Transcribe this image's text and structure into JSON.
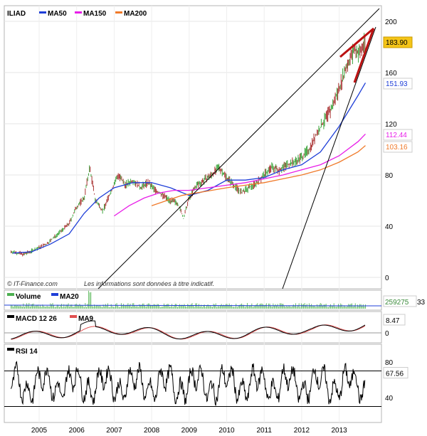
{
  "chart_data": [
    {
      "type": "line",
      "panel": "price",
      "legend": [
        {
          "name": "ILIAD",
          "color": "#000000"
        },
        {
          "name": "MA50",
          "color": "#1f3fd8"
        },
        {
          "name": "MA150",
          "color": "#e81ee8"
        },
        {
          "name": "MA200",
          "color": "#f07a2a"
        }
      ],
      "ylim": [
        0,
        210
      ],
      "yticks": [
        "0",
        "40",
        "80",
        "120",
        "160",
        "200"
      ],
      "xticks": [
        "2005",
        "2006",
        "2007",
        "2008",
        "2009",
        "2010",
        "2011",
        "2012",
        "2013"
      ],
      "last_values": {
        "price": {
          "label": "183.90",
          "color": "#f5c518"
        },
        "ma50": {
          "label": "151.93",
          "color": "#1f3fd8"
        },
        "ma150": {
          "label": "112.44",
          "color": "#e81ee8"
        },
        "ma200": {
          "label": "103.16",
          "color": "#f07a2a"
        }
      },
      "series": [
        {
          "name": "ILIAD",
          "x": [
            2004.3,
            2004.6,
            2004.9,
            2005.2,
            2005.5,
            2005.8,
            2006.0,
            2006.2,
            2006.35,
            2006.5,
            2006.7,
            2006.9,
            2007.1,
            2007.3,
            2007.5,
            2007.7,
            2007.9,
            2008.1,
            2008.3,
            2008.5,
            2008.7,
            2008.85,
            2009.0,
            2009.2,
            2009.4,
            2009.6,
            2009.8,
            2010.0,
            2010.2,
            2010.4,
            2010.6,
            2010.8,
            2011.0,
            2011.2,
            2011.4,
            2011.6,
            2011.8,
            2012.0,
            2012.2,
            2012.4,
            2012.6,
            2012.8,
            2013.0,
            2013.2,
            2013.4,
            2013.55,
            2013.7
          ],
          "values": [
            20,
            18,
            22,
            26,
            34,
            42,
            55,
            62,
            86,
            60,
            52,
            66,
            80,
            72,
            76,
            70,
            74,
            68,
            64,
            60,
            58,
            46,
            62,
            72,
            76,
            80,
            86,
            78,
            72,
            66,
            70,
            74,
            80,
            86,
            84,
            88,
            90,
            94,
            100,
            112,
            122,
            132,
            148,
            165,
            178,
            175,
            184
          ]
        },
        {
          "name": "MA50",
          "x": [
            2004.3,
            2004.8,
            2005.3,
            2005.8,
            2006.2,
            2006.6,
            2007.0,
            2007.5,
            2008.0,
            2008.5,
            2009.0,
            2009.5,
            2010.0,
            2010.5,
            2011.0,
            2011.5,
            2012.0,
            2012.5,
            2013.0,
            2013.5,
            2013.7
          ],
          "values": [
            19,
            20,
            26,
            34,
            50,
            62,
            70,
            74,
            74,
            70,
            64,
            68,
            76,
            76,
            78,
            84,
            88,
            98,
            118,
            142,
            152
          ]
        },
        {
          "name": "MA150",
          "x": [
            2007.0,
            2007.4,
            2007.8,
            2008.2,
            2008.6,
            2009.0,
            2009.5,
            2010.0,
            2010.5,
            2011.0,
            2011.5,
            2012.0,
            2012.5,
            2013.0,
            2013.5,
            2013.7
          ],
          "values": [
            48,
            56,
            62,
            66,
            68,
            68,
            70,
            72,
            74,
            77,
            80,
            84,
            88,
            95,
            106,
            112
          ]
        },
        {
          "name": "MA200",
          "x": [
            2008.0,
            2008.4,
            2008.8,
            2009.2,
            2009.6,
            2010.0,
            2010.5,
            2011.0,
            2011.5,
            2012.0,
            2012.5,
            2013.0,
            2013.5,
            2013.7
          ],
          "values": [
            56,
            60,
            64,
            66,
            68,
            70,
            72,
            74,
            77,
            80,
            84,
            90,
            98,
            103
          ]
        }
      ]
    },
    {
      "type": "bar",
      "panel": "volume",
      "legend": [
        {
          "name": "Volume",
          "color": "#4caf50"
        },
        {
          "name": "MA20",
          "color": "#1f3fd8"
        }
      ],
      "last_value": {
        "label": "259275",
        "extra": "33"
      }
    },
    {
      "type": "line",
      "panel": "macd",
      "legend": [
        {
          "name": "MACD 12 26",
          "color": "#000000"
        },
        {
          "name": "MA9",
          "color": "#e05050"
        }
      ],
      "yticks": [
        "0"
      ],
      "last_value": {
        "label": "8.47"
      }
    },
    {
      "type": "line",
      "panel": "rsi",
      "legend": [
        {
          "name": "RSI 14",
          "color": "#000000"
        }
      ],
      "yticks": [
        "40",
        "80"
      ],
      "last_value": {
        "label": "67.56"
      }
    }
  ],
  "footer_note": {
    "source": "© IT-Finance.com",
    "disclaimer": "Les informations sont données à titre indicatif."
  }
}
